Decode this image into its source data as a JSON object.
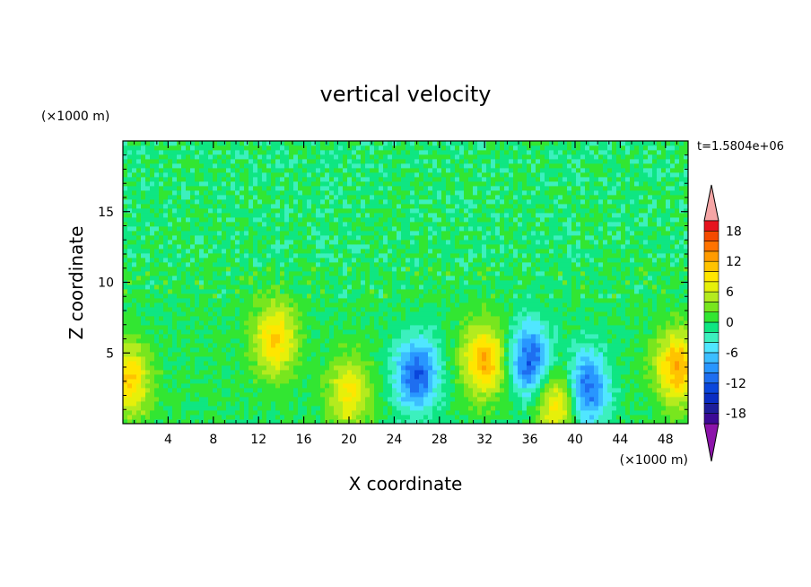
{
  "chart_data": {
    "type": "heatmap",
    "title": "vertical velocity",
    "xlabel": "X coordinate",
    "ylabel": "Z coordinate",
    "x_unit": "(×1000 m)",
    "y_unit": "(×1000 m)",
    "time_label": "t=1.5804e+06",
    "xlim": [
      0,
      50
    ],
    "ylim": [
      0,
      20
    ],
    "x_ticks": [
      "4",
      "8",
      "12",
      "16",
      "20",
      "24",
      "28",
      "32",
      "36",
      "40",
      "44",
      "48"
    ],
    "y_ticks": [
      "5",
      "10",
      "15"
    ],
    "colorbar": {
      "levels": [
        -20,
        -18,
        -16,
        -14,
        -12,
        -10,
        -8,
        -6,
        -4,
        -2,
        0,
        2,
        4,
        6,
        8,
        10,
        12,
        14,
        16,
        18,
        20
      ],
      "labels": [
        "18",
        "12",
        "6",
        "0",
        "-6",
        "-12",
        "-18"
      ],
      "colors": [
        "#3c0a96",
        "#1e1e9b",
        "#0a2dc3",
        "#0a46dc",
        "#1e6ef0",
        "#2896ff",
        "#3cbeff",
        "#50e6ff",
        "#3cf0be",
        "#0fe682",
        "#32e632",
        "#78e61e",
        "#b4eb1e",
        "#e6f00a",
        "#ffe600",
        "#ffc300",
        "#ff9b00",
        "#ff7300",
        "#f54b00",
        "#e6141e"
      ],
      "over_color": "#f5a5a5",
      "under_color": "#8c14aa"
    },
    "features": [
      {
        "x": 0.5,
        "z": 3.0,
        "peak": 10,
        "note": "updraft"
      },
      {
        "x": 13.5,
        "z": 6.0,
        "peak": 10,
        "note": "updraft"
      },
      {
        "x": 20.0,
        "z": 2.2,
        "peak": 8,
        "note": "updraft"
      },
      {
        "x": 26.0,
        "z": 3.5,
        "peak": -12,
        "note": "downdraft"
      },
      {
        "x": 32.0,
        "z": 4.5,
        "peak": 12,
        "note": "updraft"
      },
      {
        "x": 36.0,
        "z": 4.5,
        "peak": -12,
        "note": "downdraft"
      },
      {
        "x": 38.5,
        "z": 1.5,
        "peak": 10,
        "note": "updraft"
      },
      {
        "x": 41.0,
        "z": 2.5,
        "peak": -12,
        "note": "downdraft"
      },
      {
        "x": 49.0,
        "z": 4.0,
        "peak": 12,
        "note": "updraft"
      }
    ]
  }
}
